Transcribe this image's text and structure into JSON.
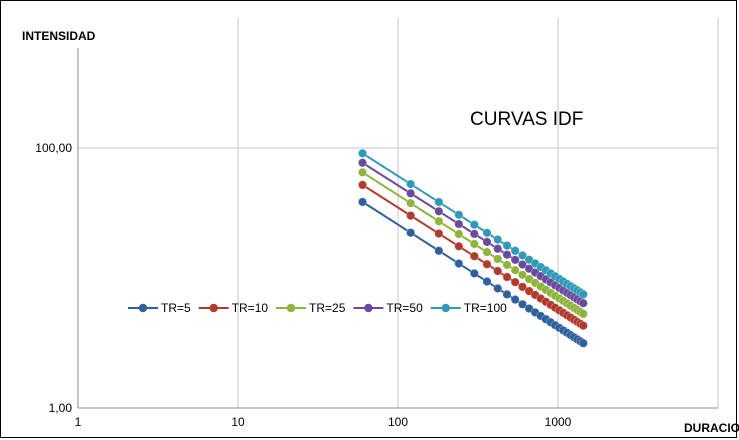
{
  "chart_data": {
    "type": "line",
    "title": "CURVAS IDF",
    "ylabel": "INTENSIDAD",
    "xlabel": "DURACION",
    "x_scale": "log",
    "y_scale": "log",
    "xlim": [
      1,
      10000
    ],
    "ylim": [
      1,
      1000
    ],
    "x_ticks": [
      "1",
      "10",
      "100",
      "1000"
    ],
    "y_ticks": [
      "1,00",
      "100,00"
    ],
    "grid": true,
    "legend_position": "center-left",
    "x": [
      60,
      120,
      180,
      240,
      300,
      360,
      420,
      480,
      540,
      600,
      660,
      720,
      780,
      840,
      900,
      960,
      1020,
      1080,
      1140,
      1200,
      1260,
      1320,
      1380,
      1440
    ],
    "series": [
      {
        "name": "TR=5",
        "color": "#2e5f9e",
        "i60": 38.5,
        "i1440": 3.15
      },
      {
        "name": "TR=10",
        "color": "#b03a2e",
        "i60": 52.0,
        "i1440": 4.3
      },
      {
        "name": "TR=25",
        "color": "#8fb43a",
        "i60": 65.0,
        "i1440": 5.3
      },
      {
        "name": "TR=50",
        "color": "#6a4a9c",
        "i60": 77.0,
        "i1440": 6.4
      },
      {
        "name": "TR=100",
        "color": "#2f9ab8",
        "i60": 91.0,
        "i1440": 7.5
      }
    ]
  }
}
